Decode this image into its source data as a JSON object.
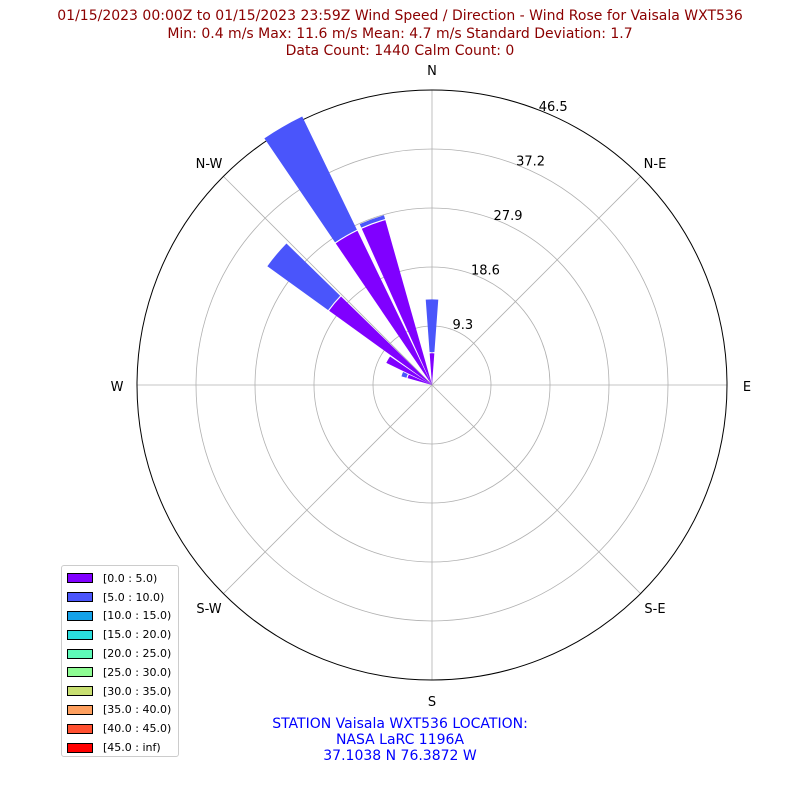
{
  "chart_data": {
    "type": "windrose",
    "title": [
      "01/15/2023 00:00Z to 01/15/2023 23:59Z Wind Speed / Direction - Wind Rose for Vaisala WXT536",
      "Min: 0.4 m/s   Max: 11.6 m/s   Mean: 4.7 m/s  Standard Deviation: 1.7",
      "Data Count: 1440  Calm Count:  0"
    ],
    "footer": [
      "STATION Vaisala WXT536 LOCATION:",
      "NASA LaRC 1196A",
      "37.1038 N 76.3872 W"
    ],
    "direction_labels": [
      "N",
      "N-E",
      "E",
      "S-E",
      "S",
      "S-W",
      "W",
      "N-W"
    ],
    "radial_ticks": [
      "9.3",
      "18.6",
      "27.9",
      "37.2",
      "46.5"
    ],
    "radial_tick_values": [
      9.3,
      18.6,
      27.9,
      37.2,
      46.5
    ],
    "rmax": 46.5,
    "legend": [
      {
        "label": "[0.0 : 5.0)",
        "color": "#8000ff"
      },
      {
        "label": "[5.0 : 10.0)",
        "color": "#4a55fb"
      },
      {
        "label": "[10.0 : 15.0)",
        "color": "#14a2e9"
      },
      {
        "label": "[15.0 : 20.0)",
        "color": "#2adddd"
      },
      {
        "label": "[20.0 : 25.0)",
        "color": "#5efab8"
      },
      {
        "label": "[25.0 : 30.0)",
        "color": "#8efc93"
      },
      {
        "label": "[30.0 : 35.0)",
        "color": "#c8df72"
      },
      {
        "label": "[35.0 : 40.0)",
        "color": "#fe9f5e"
      },
      {
        "label": "[40.0 : 45.0)",
        "color": "#ff5030"
      },
      {
        "label": "[45.0 : inf)",
        "color": "#ff0000"
      }
    ],
    "sectors": [
      {
        "direction_deg": 0,
        "bins": [
          {
            "bin": "[0.0 : 5.0)",
            "value": 5.0
          },
          {
            "bin": "[5.0 : 10.0)",
            "value": 8.5
          }
        ]
      },
      {
        "direction_deg": 340,
        "bins": [
          {
            "bin": "[0.0 : 5.0)",
            "value": 27.0
          },
          {
            "bin": "[5.0 : 10.0)",
            "value": 0.8
          }
        ]
      },
      {
        "direction_deg": 330,
        "bins": [
          {
            "bin": "[0.0 : 5.0)",
            "value": 27.0
          },
          {
            "bin": "[5.0 : 10.0)",
            "value": 20.0
          }
        ]
      },
      {
        "direction_deg": 310,
        "bins": [
          {
            "bin": "[0.0 : 5.0)",
            "value": 20.0
          },
          {
            "bin": "[5.0 : 10.0)",
            "value": 12.0
          }
        ]
      },
      {
        "direction_deg": 300,
        "bins": [
          {
            "bin": "[0.0 : 5.0)",
            "value": 8.0
          }
        ]
      },
      {
        "direction_deg": 290,
        "bins": [
          {
            "bin": "[0.0 : 5.0)",
            "value": 4.0
          },
          {
            "bin": "[5.0 : 10.0)",
            "value": 1.0
          }
        ]
      }
    ]
  }
}
